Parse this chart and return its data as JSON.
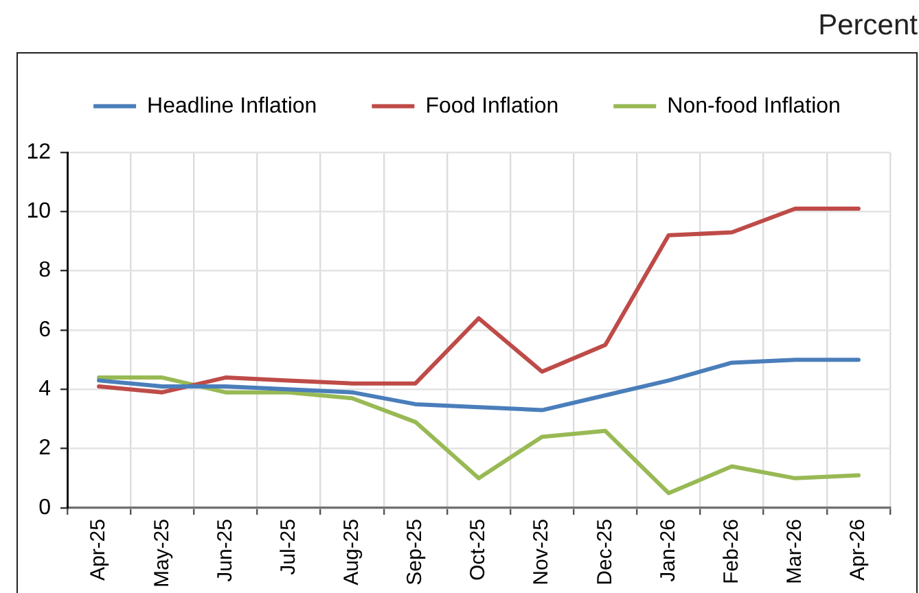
{
  "chart_data": {
    "type": "line",
    "ylabel": "Percent",
    "categories": [
      "Apr-25",
      "May-25",
      "Jun-25",
      "Jul-25",
      "Aug-25",
      "Sep-25",
      "Oct-25",
      "Nov-25",
      "Dec-25",
      "Jan-26",
      "Feb-26",
      "Mar-26",
      "Apr-26"
    ],
    "series": [
      {
        "name": "Headline Inflation",
        "color": "#4a7ebb",
        "values": [
          4.3,
          4.1,
          4.1,
          4.0,
          3.9,
          3.5,
          3.4,
          3.3,
          3.8,
          4.3,
          4.9,
          5.0,
          5.0
        ]
      },
      {
        "name": "Food Inflation",
        "color": "#be4b48",
        "values": [
          4.1,
          3.9,
          4.4,
          4.3,
          4.2,
          4.2,
          6.4,
          4.6,
          5.5,
          9.2,
          9.3,
          10.1,
          10.1
        ]
      },
      {
        "name": "Non-food Inflation",
        "color": "#98b954",
        "values": [
          4.4,
          4.4,
          3.9,
          3.9,
          3.7,
          2.9,
          1.0,
          2.4,
          2.6,
          0.5,
          1.4,
          1.0,
          1.1
        ]
      }
    ],
    "ylim": [
      0,
      12
    ],
    "yticks": [
      0,
      2,
      4,
      6,
      8,
      10,
      12
    ],
    "grid": true,
    "legend": "top",
    "marker": "none",
    "line_style": "solid"
  }
}
